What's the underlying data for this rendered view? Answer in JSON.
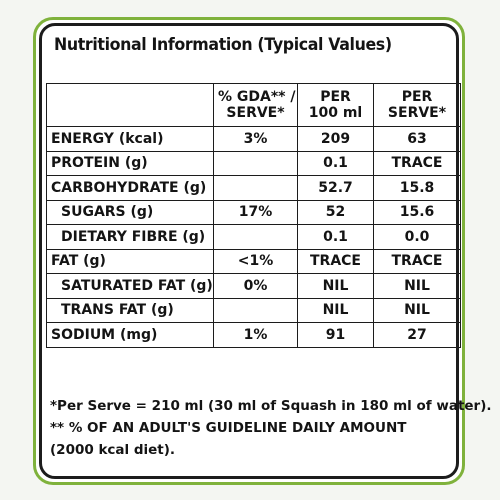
{
  "title": "Nutritional Information (Typical Values)",
  "table": {
    "headers": [
      "",
      "% GDA** / SERVE*",
      "PER 100 ml",
      "PER SERVE*"
    ],
    "rows": [
      {
        "label": "ENERGY (kcal)",
        "gda": "3%",
        "per100": "209",
        "perServe": "63",
        "indent": false
      },
      {
        "label": "PROTEIN (g)",
        "gda": "",
        "per100": "0.1",
        "perServe": "TRACE",
        "indent": false
      },
      {
        "label": "CARBOHYDRATE (g)",
        "gda": "",
        "per100": "52.7",
        "perServe": "15.8",
        "indent": false
      },
      {
        "label": "SUGARS (g)",
        "gda": "17%",
        "per100": "52",
        "perServe": "15.6",
        "indent": true
      },
      {
        "label": "DIETARY FIBRE (g)",
        "gda": "",
        "per100": "0.1",
        "perServe": "0.0",
        "indent": true
      },
      {
        "label": "FAT (g)",
        "gda": "<1%",
        "per100": "TRACE",
        "perServe": "TRACE",
        "indent": false
      },
      {
        "label": "SATURATED FAT (g)",
        "gda": "0%",
        "per100": "NIL",
        "perServe": "NIL",
        "indent": true
      },
      {
        "label": "TRANS FAT (g)",
        "gda": "",
        "per100": "NIL",
        "perServe": "NIL",
        "indent": true
      },
      {
        "label": "SODIUM (mg)",
        "gda": "1%",
        "per100": "91",
        "perServe": "27",
        "indent": false
      }
    ]
  },
  "footnotes": [
    "*Per Serve = 210 ml (30 ml of Squash in 180 ml of water).",
    "** % OF AN ADULT'S GUIDELINE DAILY AMOUNT",
    "(2000 kcal diet)."
  ],
  "colors": {
    "outer_border": "#7fb23c",
    "inner_border": "#1c1c1c",
    "text": "#141414"
  }
}
